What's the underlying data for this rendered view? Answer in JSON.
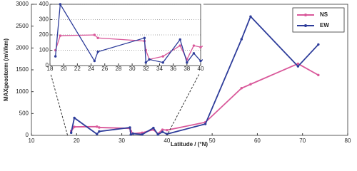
{
  "chart_data": {
    "type": "line",
    "x_label": "Latitude / (°N)",
    "y_label": "MAXgeostorm (mV/km)",
    "x": [
      18.8,
      19.5,
      24.5,
      25,
      31.8,
      32,
      32.5,
      34.5,
      37,
      38,
      39,
      40,
      48.5,
      56.5,
      58.5,
      69,
      73.5
    ],
    "series": [
      {
        "name": "NS",
        "color": "#d9589a",
        "values": [
          100,
          195,
          200,
          180,
          160,
          100,
          40,
          60,
          130,
          40,
          130,
          120,
          300,
          1080,
          1170,
          1640,
          1380
        ]
      },
      {
        "name": "EW",
        "color": "#2d3c9a",
        "values": [
          60,
          400,
          30,
          90,
          180,
          20,
          40,
          20,
          170,
          20,
          80,
          30,
          260,
          2200,
          2720,
          1580,
          2080
        ]
      }
    ],
    "xlim": [
      10,
      80
    ],
    "xticks": [
      10,
      20,
      30,
      40,
      50,
      60,
      70,
      80
    ],
    "ylim": [
      0,
      3000
    ],
    "yticks": [
      0,
      500,
      1000,
      1500,
      2000,
      2500,
      3000
    ],
    "legend": "upper right",
    "inset": {
      "xlim": [
        18,
        40
      ],
      "xticks": [
        18,
        20,
        22,
        24,
        26,
        28,
        30,
        32,
        34,
        36,
        38,
        40
      ],
      "ylim": [
        0,
        400
      ],
      "yticks": [
        0,
        100,
        200,
        300,
        400
      ],
      "grid": "dotted"
    }
  }
}
